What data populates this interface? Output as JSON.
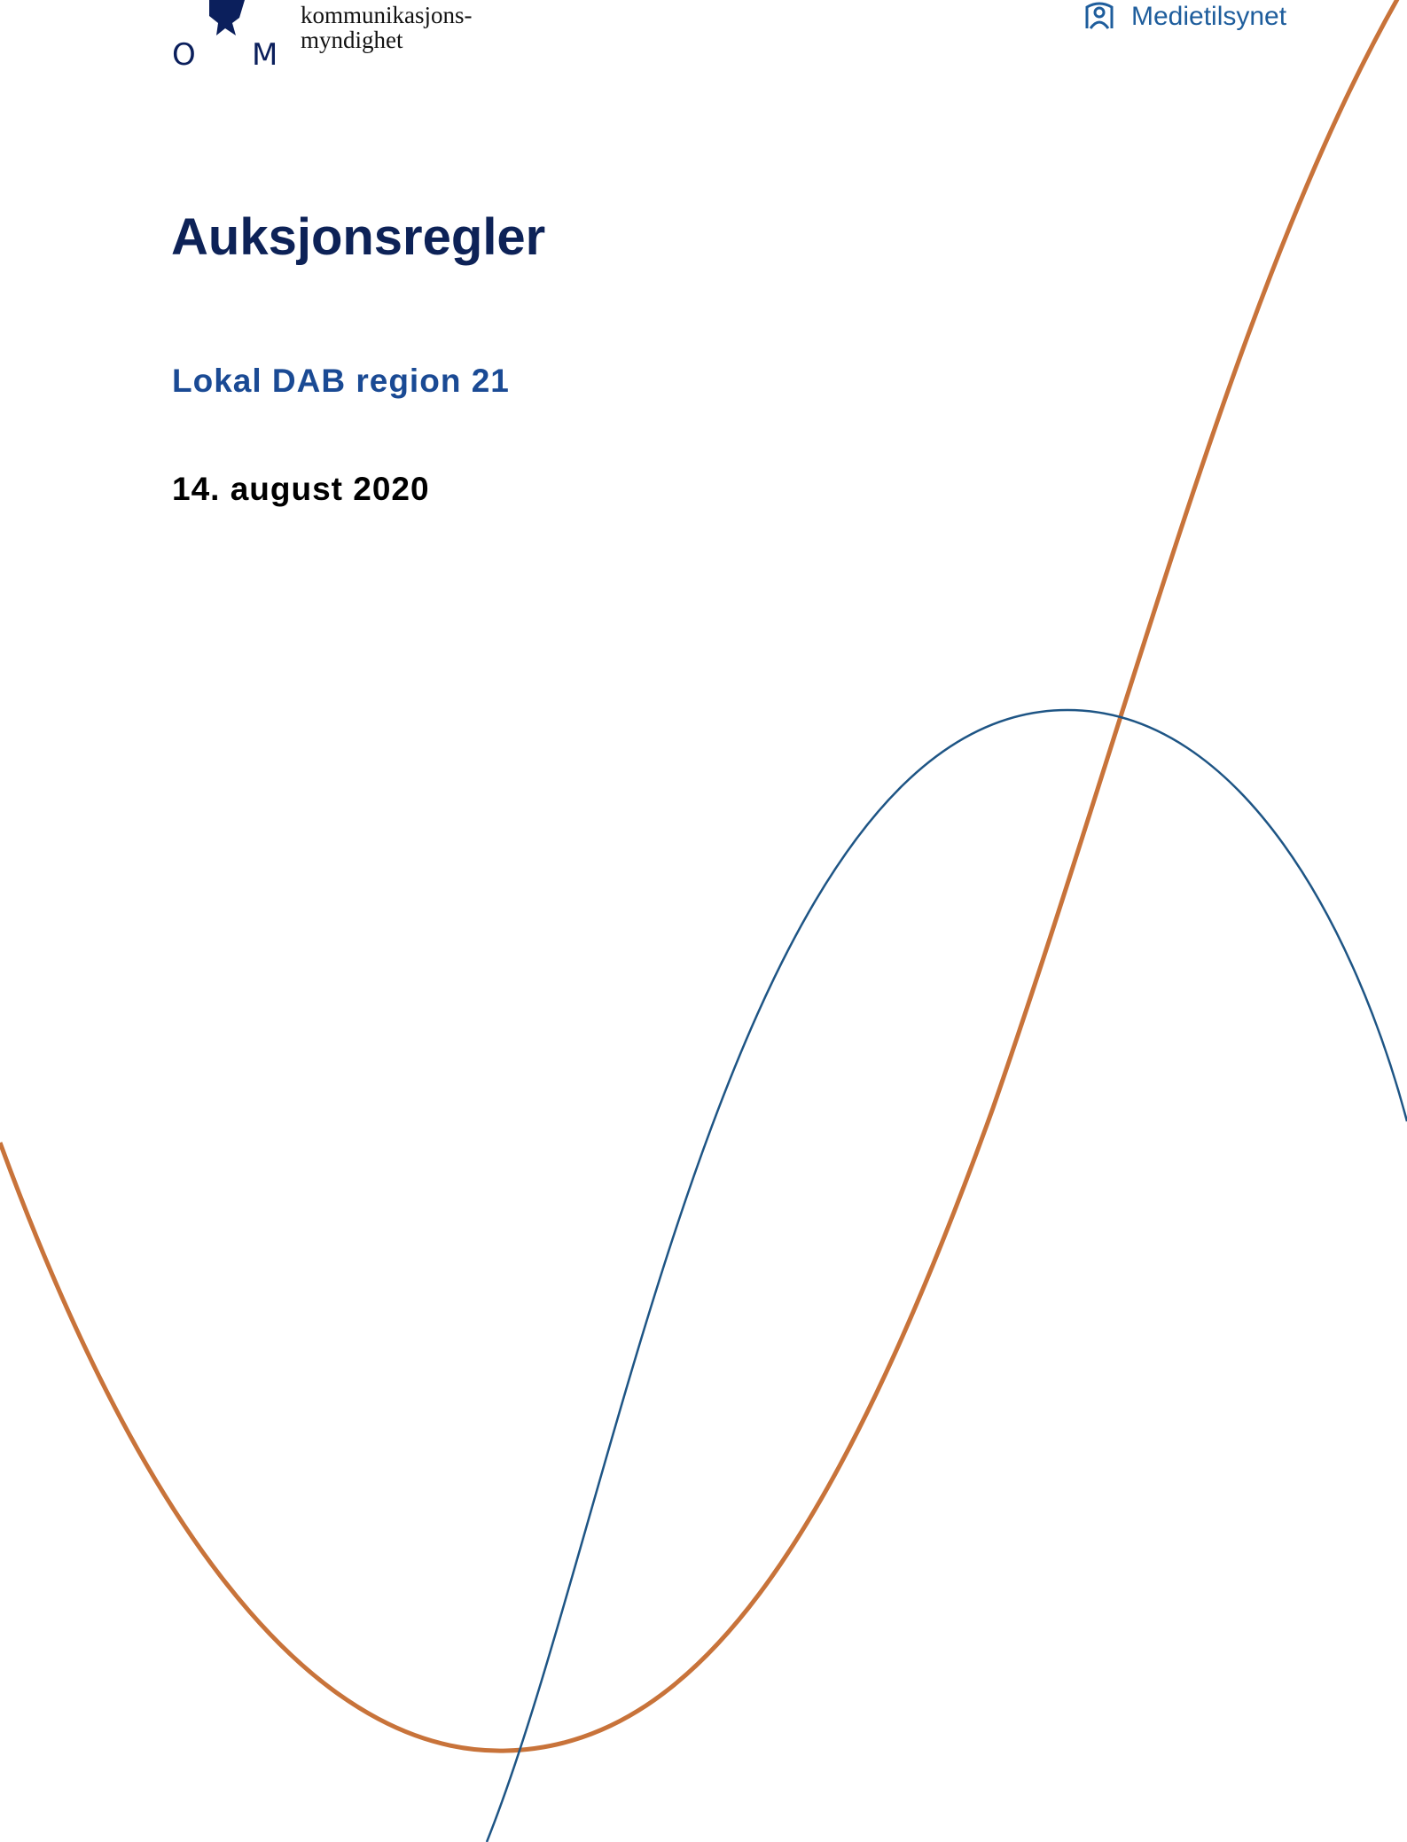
{
  "header": {
    "left_logo": {
      "letters": [
        "O",
        "M"
      ],
      "lines": [
        "kommunikasjons-",
        "myndighet"
      ]
    },
    "right_logo": "Medietilsynet"
  },
  "document": {
    "title": "Auksjonsregler",
    "subtitle": "Lokal DAB region 21",
    "date": "14. august 2020"
  }
}
